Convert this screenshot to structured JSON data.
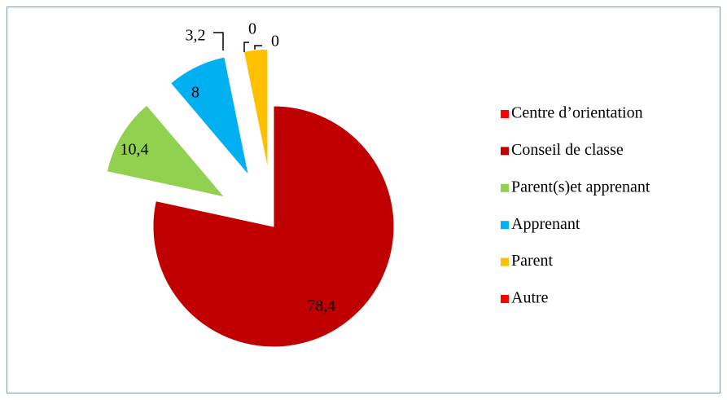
{
  "chart_data": {
    "type": "pie",
    "categories": [
      "Centre d’orientation",
      "Conseil de classe",
      "Parent(s)et apprenant",
      "Apprenant",
      "Parent",
      "Autre"
    ],
    "values": [
      0,
      78.4,
      10.4,
      8,
      3.2,
      0
    ],
    "value_labels": [
      "0",
      "78,4",
      "10,4",
      "8",
      "3,2",
      "0"
    ],
    "colors": [
      "#ff0000",
      "#c00000",
      "#92d050",
      "#00b0f0",
      "#ffc000",
      "#ff0000"
    ],
    "legend": "right"
  }
}
